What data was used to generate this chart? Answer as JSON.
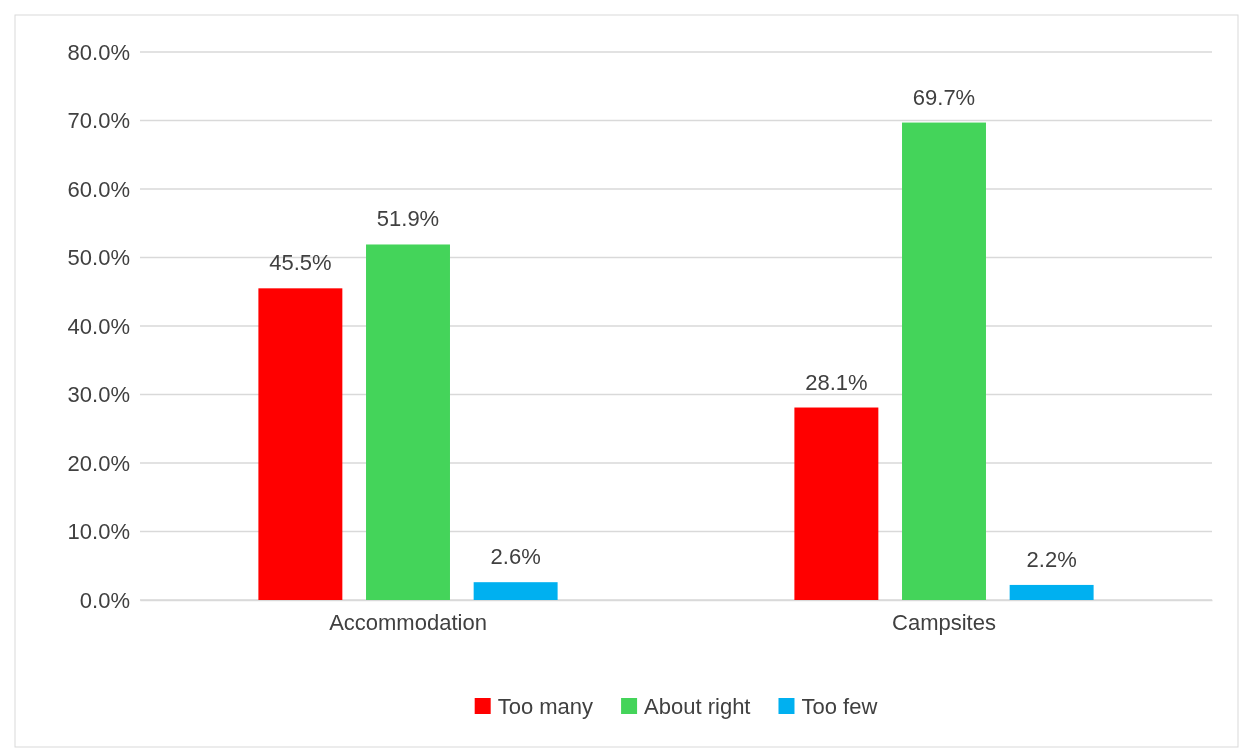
{
  "chart_data": {
    "type": "bar",
    "categories": [
      "Accommodation",
      "Campsites"
    ],
    "series": [
      {
        "name": "Too many",
        "color": "#ff0000",
        "values": [
          45.5,
          28.1
        ],
        "value_labels": [
          "45.5%",
          "28.1%"
        ]
      },
      {
        "name": "About right",
        "color": "#44d45a",
        "values": [
          51.9,
          69.7
        ],
        "value_labels": [
          "51.9%",
          "69.7%"
        ]
      },
      {
        "name": "Too few",
        "color": "#00b0f0",
        "values": [
          2.6,
          2.2
        ],
        "value_labels": [
          "2.6%",
          "2.2%"
        ]
      }
    ],
    "ylim": [
      0,
      80
    ],
    "yticks": [
      {
        "value": 0,
        "label": "0.0%"
      },
      {
        "value": 10,
        "label": "10.0%"
      },
      {
        "value": 20,
        "label": "20.0%"
      },
      {
        "value": 30,
        "label": "30.0%"
      },
      {
        "value": 40,
        "label": "40.0%"
      },
      {
        "value": 50,
        "label": "50.0%"
      },
      {
        "value": 60,
        "label": "60.0%"
      },
      {
        "value": 70,
        "label": "70.0%"
      },
      {
        "value": 80,
        "label": "80.0%"
      }
    ],
    "grid": "y",
    "legend": "bottom"
  }
}
